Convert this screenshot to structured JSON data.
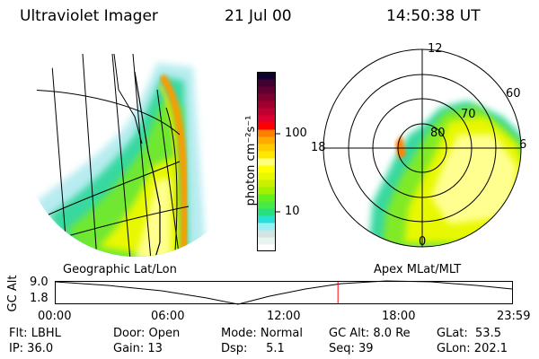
{
  "header": {
    "instrument": "Ultraviolet Imager",
    "date": "21 Jul 00",
    "time": "14:50:38 UT"
  },
  "colorbar": {
    "unit_label": "photon cm⁻²s⁻¹",
    "tick_labels": [
      "100",
      "10"
    ],
    "colors": [
      "#ffffff",
      "#e8f4ee",
      "#d2e4e2",
      "#98f0f5",
      "#28e0d8",
      "#28e07a",
      "#48e845",
      "#64f01e",
      "#a0f000",
      "#c8f000",
      "#e8f800",
      "#ffff00",
      "#ffff80",
      "#ffe800",
      "#ffcc00",
      "#ffaa00",
      "#ff8000",
      "#ff0000",
      "#e00030",
      "#c00030",
      "#a00030",
      "#800030",
      "#600030",
      "#400030",
      "#100030"
    ]
  },
  "left_panel": {
    "label": "Geographic Lat/Lon"
  },
  "right_panel": {
    "label": "Apex MLat/MLT",
    "mlt_labels": {
      "top": "12",
      "left": "18",
      "right": "6",
      "bottom": "0"
    },
    "lat_labels": [
      "60",
      "70",
      "80"
    ]
  },
  "altitude_plot": {
    "ylabel": "GC Alt",
    "y_ticks": [
      "9.0",
      "1.8"
    ],
    "x_ticks": [
      "00:00",
      "06:00",
      "12:00",
      "18:00",
      "23:59"
    ],
    "marker_time": "14:50",
    "marker_color": "#ff0000"
  },
  "info": {
    "flt": "Flt: LBHL",
    "ip": "IP: 36.0",
    "door": "Door: Open",
    "gain": "Gain: 13",
    "mode": "Mode: Normal",
    "dsp": "Dsp:     5.1",
    "gc_alt": "GC Alt: 8.0 Re",
    "seq": "Seq: 39",
    "glat": "GLat:  53.5",
    "glon": "GLon: 202.1"
  }
}
